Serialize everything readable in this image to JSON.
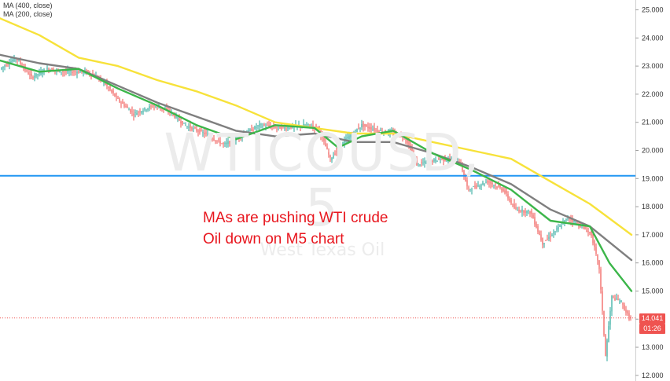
{
  "colors": {
    "price_up": "#26a69a",
    "price_down": "#ef5350",
    "ma_yellow": "#f7e23a",
    "ma_grey": "#7f7f7f",
    "ma_green": "#3cb64a",
    "hline": "#2196f3",
    "annotation": "#e8161e",
    "price_line": "#ef5350"
  },
  "legend": [
    "MA (400, close)",
    "MA (200, close)"
  ],
  "watermark": {
    "symbol": "WTICOUSD, 5",
    "subtitle": "West Texas Oil"
  },
  "annotation": [
    "MAs are pushing WTI crude",
    "Oil down on M5 chart"
  ],
  "price_tag": {
    "price": "14.041",
    "countdown": "01:26"
  },
  "chart_data": {
    "type": "line",
    "ylim": [
      11.8,
      25.35
    ],
    "y_ticks": [
      "25.000",
      "24.000",
      "23.000",
      "22.000",
      "21.000",
      "20.000",
      "19.000",
      "18.000",
      "17.000",
      "16.000",
      "15.000",
      "14.000",
      "13.000",
      "12.000"
    ],
    "horizontal_line": 19.1,
    "last_price": 14.041,
    "price_series": [
      {
        "x": 0,
        "y": 22.9
      },
      {
        "x": 20,
        "y": 23.3
      },
      {
        "x": 40,
        "y": 22.6
      },
      {
        "x": 60,
        "y": 22.9
      },
      {
        "x": 80,
        "y": 22.8
      },
      {
        "x": 110,
        "y": 22.8
      },
      {
        "x": 130,
        "y": 22.5
      },
      {
        "x": 150,
        "y": 21.8
      },
      {
        "x": 170,
        "y": 21.3
      },
      {
        "x": 195,
        "y": 21.6
      },
      {
        "x": 215,
        "y": 21.4
      },
      {
        "x": 235,
        "y": 20.9
      },
      {
        "x": 260,
        "y": 20.6
      },
      {
        "x": 285,
        "y": 20.2
      },
      {
        "x": 305,
        "y": 20.5
      },
      {
        "x": 330,
        "y": 20.9
      },
      {
        "x": 360,
        "y": 20.8
      },
      {
        "x": 390,
        "y": 20.9
      },
      {
        "x": 405,
        "y": 20.8
      },
      {
        "x": 420,
        "y": 19.7
      },
      {
        "x": 440,
        "y": 20.4
      },
      {
        "x": 460,
        "y": 20.9
      },
      {
        "x": 480,
        "y": 20.7
      },
      {
        "x": 500,
        "y": 20.6
      },
      {
        "x": 515,
        "y": 20.5
      },
      {
        "x": 530,
        "y": 19.5
      },
      {
        "x": 560,
        "y": 19.7
      },
      {
        "x": 585,
        "y": 19.6
      },
      {
        "x": 595,
        "y": 18.6
      },
      {
        "x": 620,
        "y": 18.9
      },
      {
        "x": 640,
        "y": 18.6
      },
      {
        "x": 655,
        "y": 17.9
      },
      {
        "x": 675,
        "y": 17.8
      },
      {
        "x": 690,
        "y": 16.7
      },
      {
        "x": 705,
        "y": 17.1
      },
      {
        "x": 722,
        "y": 17.6
      },
      {
        "x": 740,
        "y": 17.3
      },
      {
        "x": 752,
        "y": 17.0
      },
      {
        "x": 762,
        "y": 15.8
      },
      {
        "x": 770,
        "y": 12.7
      },
      {
        "x": 778,
        "y": 14.8
      },
      {
        "x": 790,
        "y": 14.6
      },
      {
        "x": 800,
        "y": 14.04
      }
    ],
    "series": [
      {
        "name": "MA (400, close)",
        "points": [
          {
            "x": 0,
            "y": 24.7
          },
          {
            "x": 50,
            "y": 24.1
          },
          {
            "x": 100,
            "y": 23.3
          },
          {
            "x": 150,
            "y": 23.0
          },
          {
            "x": 200,
            "y": 22.5
          },
          {
            "x": 250,
            "y": 22.1
          },
          {
            "x": 300,
            "y": 21.6
          },
          {
            "x": 350,
            "y": 21.0
          },
          {
            "x": 400,
            "y": 20.8
          },
          {
            "x": 450,
            "y": 20.6
          },
          {
            "x": 500,
            "y": 20.6
          },
          {
            "x": 550,
            "y": 20.3
          },
          {
            "x": 600,
            "y": 20.0
          },
          {
            "x": 650,
            "y": 19.7
          },
          {
            "x": 700,
            "y": 18.9
          },
          {
            "x": 750,
            "y": 18.1
          },
          {
            "x": 803,
            "y": 17.0
          }
        ]
      },
      {
        "name": "",
        "points": [
          {
            "x": 0,
            "y": 23.4
          },
          {
            "x": 50,
            "y": 23.1
          },
          {
            "x": 100,
            "y": 22.9
          },
          {
            "x": 150,
            "y": 22.3
          },
          {
            "x": 200,
            "y": 21.7
          },
          {
            "x": 250,
            "y": 21.2
          },
          {
            "x": 300,
            "y": 20.7
          },
          {
            "x": 350,
            "y": 20.5
          },
          {
            "x": 400,
            "y": 20.6
          },
          {
            "x": 450,
            "y": 20.3
          },
          {
            "x": 500,
            "y": 20.3
          },
          {
            "x": 550,
            "y": 19.9
          },
          {
            "x": 600,
            "y": 19.4
          },
          {
            "x": 650,
            "y": 18.8
          },
          {
            "x": 700,
            "y": 17.9
          },
          {
            "x": 750,
            "y": 17.3
          },
          {
            "x": 803,
            "y": 16.1
          }
        ]
      },
      {
        "name": "",
        "points": [
          {
            "x": 0,
            "y": 23.2
          },
          {
            "x": 50,
            "y": 22.8
          },
          {
            "x": 100,
            "y": 22.9
          },
          {
            "x": 150,
            "y": 22.2
          },
          {
            "x": 200,
            "y": 21.6
          },
          {
            "x": 250,
            "y": 20.9
          },
          {
            "x": 300,
            "y": 20.4
          },
          {
            "x": 350,
            "y": 20.9
          },
          {
            "x": 400,
            "y": 20.8
          },
          {
            "x": 430,
            "y": 20.1
          },
          {
            "x": 460,
            "y": 20.5
          },
          {
            "x": 500,
            "y": 20.7
          },
          {
            "x": 550,
            "y": 19.9
          },
          {
            "x": 600,
            "y": 19.3
          },
          {
            "x": 650,
            "y": 18.6
          },
          {
            "x": 700,
            "y": 17.5
          },
          {
            "x": 750,
            "y": 17.3
          },
          {
            "x": 775,
            "y": 16.0
          },
          {
            "x": 803,
            "y": 15.0
          }
        ]
      }
    ]
  }
}
